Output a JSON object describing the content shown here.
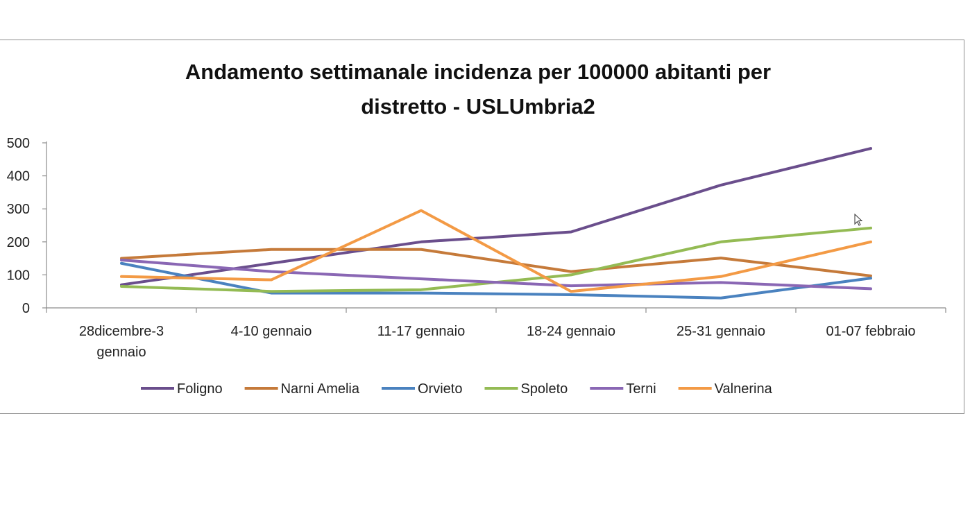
{
  "chart_data": {
    "type": "line",
    "title": [
      "Andamento settimanale incidenza per 100000 abitanti per",
      "distretto - USLUmbria2"
    ],
    "categories": [
      [
        "28dicembre-3",
        "gennaio"
      ],
      [
        "4-10 gennaio"
      ],
      [
        "11-17 gennaio"
      ],
      [
        "18-24 gennaio"
      ],
      [
        "25-31 gennaio"
      ],
      [
        "01-07 febbraio"
      ]
    ],
    "yticks": [
      "0",
      "100",
      "200",
      "300",
      "400",
      "500"
    ],
    "ylim": [
      0,
      500
    ],
    "grid": false,
    "legend_position": "bottom",
    "series": [
      {
        "name": "Foligno",
        "color": "#6a4e8c",
        "values": [
          70,
          135,
          200,
          230,
          372,
          483
        ]
      },
      {
        "name": "Narni Amelia",
        "color": "#c57a3a",
        "values": [
          150,
          177,
          177,
          110,
          151,
          97
        ]
      },
      {
        "name": "Orvieto",
        "color": "#4a82bf",
        "values": [
          135,
          45,
          45,
          40,
          30,
          90
        ]
      },
      {
        "name": "Spoleto",
        "color": "#94bb54",
        "values": [
          65,
          50,
          55,
          100,
          200,
          242
        ]
      },
      {
        "name": "Terni",
        "color": "#8a67b4",
        "values": [
          145,
          110,
          88,
          67,
          77,
          58
        ]
      },
      {
        "name": "Valnerina",
        "color": "#f39a45",
        "values": [
          95,
          85,
          295,
          50,
          95,
          200
        ]
      }
    ]
  }
}
